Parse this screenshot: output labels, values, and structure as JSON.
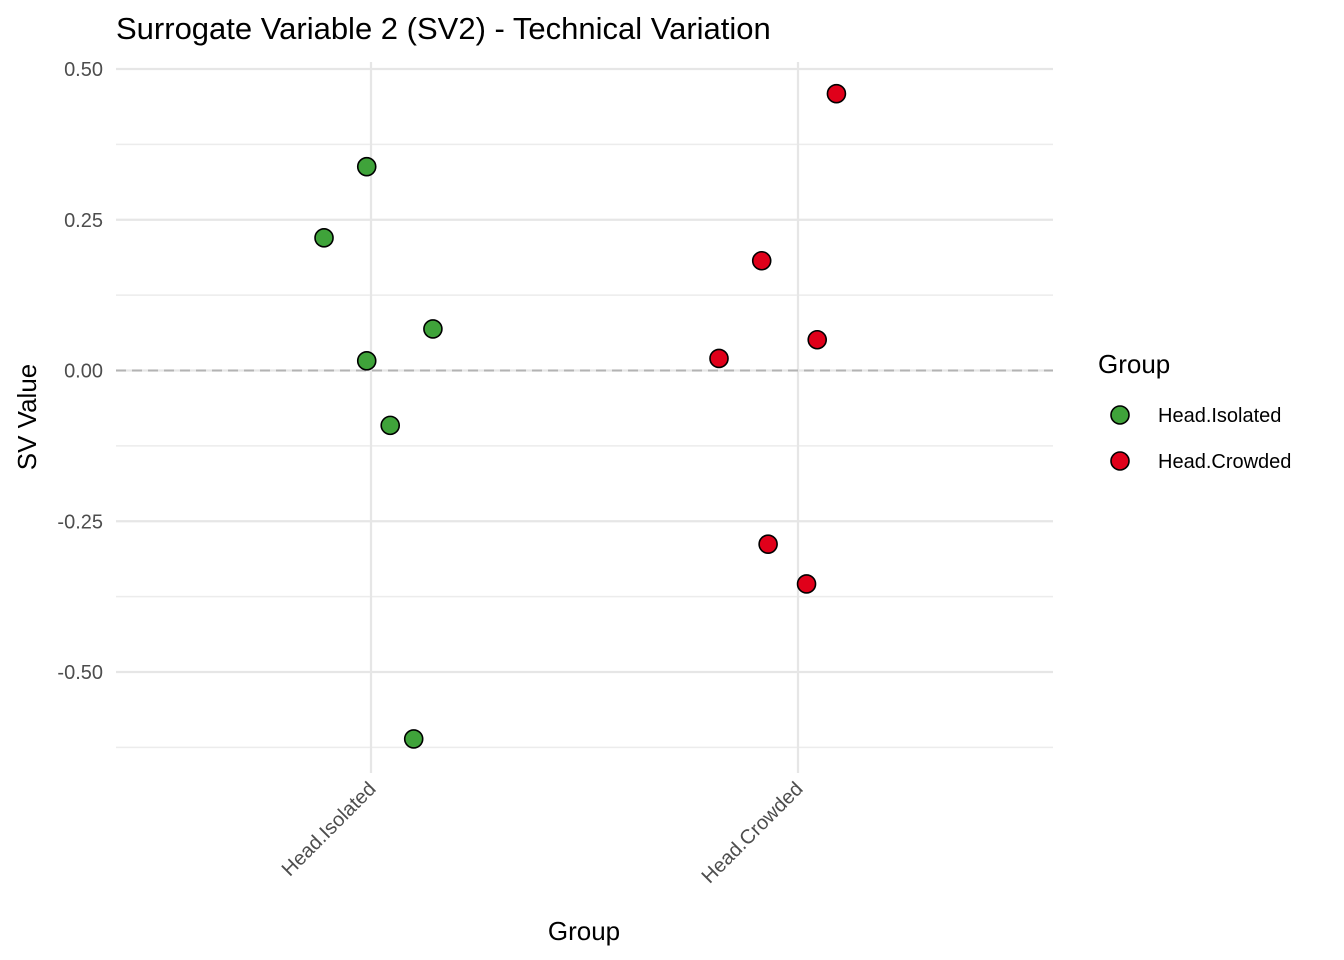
{
  "chart_data": {
    "type": "scatter",
    "title": "Surrogate Variable 2 (SV2) - Technical Variation",
    "xlabel": "Group",
    "ylabel": "SV Value",
    "categories": [
      "Head.Isolated",
      "Head.Crowded"
    ],
    "ylim": [
      -0.625,
      0.51
    ],
    "yticks": [
      0.5,
      0.25,
      0.0,
      -0.25,
      -0.5
    ],
    "ytick_labels": [
      "0.50",
      "0.25",
      "0.00",
      "-0.25",
      "-0.50"
    ],
    "reference_line": {
      "y": 0.0,
      "style": "dashed",
      "color": "#b3b3b3"
    },
    "grid": true,
    "legend": {
      "title": "Group",
      "placement": "right",
      "entries": [
        {
          "label": "Head.Isolated",
          "color": "#3fa33a"
        },
        {
          "label": "Head.Crowded",
          "color": "#e0001a"
        }
      ]
    },
    "series": [
      {
        "name": "Head.Isolated",
        "color": "#3fa33a",
        "category": "Head.Isolated",
        "points": [
          {
            "jitter": -0.11,
            "y": 0.22
          },
          {
            "jitter": -0.01,
            "y": 0.338
          },
          {
            "jitter": 0.145,
            "y": 0.069
          },
          {
            "jitter": -0.01,
            "y": 0.016
          },
          {
            "jitter": 0.045,
            "y": -0.091
          },
          {
            "jitter": 0.1,
            "y": -0.611
          }
        ]
      },
      {
        "name": "Head.Crowded",
        "color": "#e0001a",
        "category": "Head.Crowded",
        "points": [
          {
            "jitter": 0.09,
            "y": 0.459
          },
          {
            "jitter": -0.085,
            "y": 0.182
          },
          {
            "jitter": 0.045,
            "y": 0.051
          },
          {
            "jitter": -0.185,
            "y": 0.02
          },
          {
            "jitter": -0.07,
            "y": -0.288
          },
          {
            "jitter": 0.02,
            "y": -0.354
          }
        ]
      }
    ]
  }
}
